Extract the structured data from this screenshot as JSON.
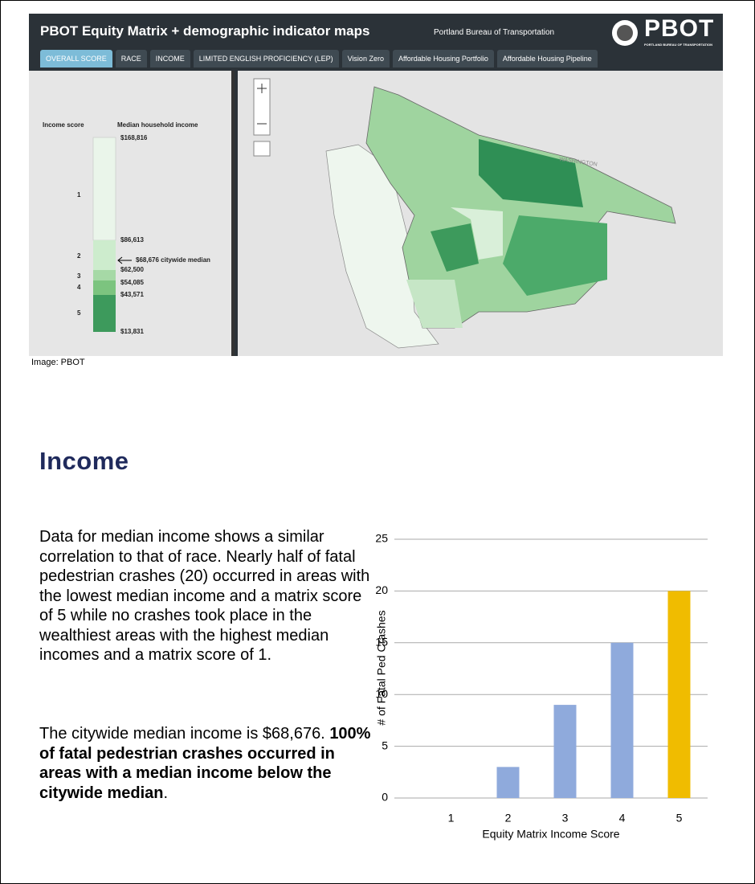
{
  "header": {
    "title": "PBOT Equity Matrix + demographic indicator maps",
    "org": "Portland Bureau of Transportation",
    "logo": "PBOT",
    "logo_sub": "PORTLAND BUREAU OF TRANSPORTATION"
  },
  "tabs": [
    "OVERALL SCORE",
    "RACE",
    "INCOME",
    "LIMITED ENGLISH PROFICIENCY (LEP)",
    "Vision Zero",
    "Affordable Housing Portfolio",
    "Affordable Housing Pipeline"
  ],
  "legend": {
    "score_heading": "Income score",
    "income_heading": "Median household income",
    "scores": [
      "1",
      "2",
      "3",
      "4",
      "5"
    ],
    "incomes": [
      "$168,816",
      "$86,613",
      "$68,676 citywide median",
      "$62,500",
      "$54,085",
      "$43,571",
      "$13,831"
    ]
  },
  "map_label": "WASHINGTON",
  "caption": "Image: PBOT",
  "heading": "Income",
  "paragraphs": [
    {
      "text": "Data for median income shows a similar correlation to that of race. Nearly half of fatal pedestrian crashes (20) occurred in areas with the lowest median income and a matrix score of 5 while no crashes took place in the wealthiest areas with the highest median incomes and a matrix score of 1."
    },
    {
      "text": "The citywide median income is $68,676.",
      "bold": "100% of fatal pedestrian crashes occurred in areas with a median income below the citywide median",
      "end": "."
    }
  ],
  "chart_data": {
    "type": "bar",
    "categories": [
      "1",
      "2",
      "3",
      "4",
      "5"
    ],
    "values": [
      0,
      3,
      9,
      15,
      20
    ],
    "colors": [
      "#8faadc",
      "#8faadc",
      "#8faadc",
      "#8faadc",
      "#f0bc00"
    ],
    "xlabel": "Equity Matrix Income Score",
    "ylabel": "# of Fatal Ped  Crashes",
    "ylim": [
      0,
      25
    ],
    "yticks": [
      0,
      5,
      10,
      15,
      20,
      25
    ],
    "grid": true
  }
}
